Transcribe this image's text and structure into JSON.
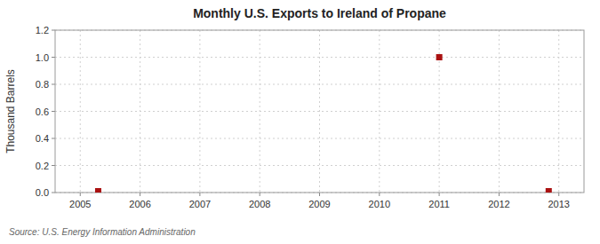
{
  "chart_data": {
    "type": "scatter",
    "title": "Monthly U.S. Exports to Ireland of Propane",
    "y_label": "Thousand Barrels",
    "annotations": [
      "Source: U.S. Energy Information Administration"
    ],
    "x": [
      2005.3,
      2011.0,
      2012.83
    ],
    "values": [
      0.01,
      1.0,
      0.01
    ],
    "color": "#aa1111",
    "marker": "square",
    "xlim": [
      2004.58,
      2013.42
    ],
    "xticks": [
      2005,
      2006,
      2007,
      2008,
      2009,
      2010,
      2011,
      2012,
      2013
    ],
    "ylim": [
      0.0,
      1.2
    ],
    "yticks": [
      {
        "value": 0.0,
        "label": "0.0"
      },
      0.2,
      0.4,
      0.6,
      0.8,
      {
        "value": 1.0,
        "label": "1.0"
      },
      1.2
    ],
    "grid": true
  }
}
